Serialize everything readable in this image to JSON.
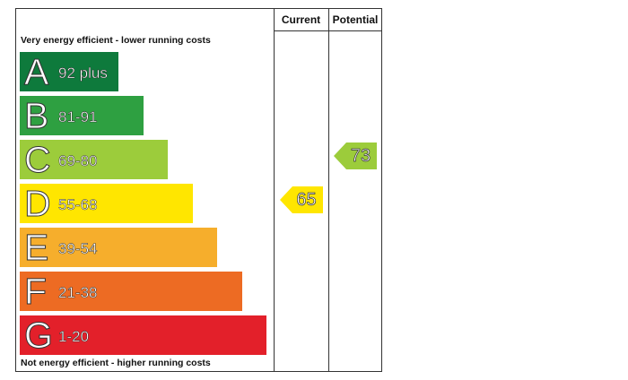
{
  "chart_data": {
    "type": "bar",
    "title": "",
    "header": {
      "current": "Current",
      "potential": "Potential"
    },
    "top_caption": "Very energy efficient - lower running costs",
    "bottom_caption": "Not energy efficient - higher running costs",
    "bands": [
      {
        "letter": "A",
        "range": "92 plus",
        "min": 92,
        "max": 100,
        "color": "#0e7a3c"
      },
      {
        "letter": "B",
        "range": "81-91",
        "min": 81,
        "max": 91,
        "color": "#2ea041"
      },
      {
        "letter": "C",
        "range": "69-80",
        "min": 69,
        "max": 80,
        "color": "#9ccc3b"
      },
      {
        "letter": "D",
        "range": "55-68",
        "min": 55,
        "max": 68,
        "color": "#ffe600"
      },
      {
        "letter": "E",
        "range": "39-54",
        "min": 39,
        "max": 54,
        "color": "#f6ae2c"
      },
      {
        "letter": "F",
        "range": "21-38",
        "min": 21,
        "max": 38,
        "color": "#ed6b23"
      },
      {
        "letter": "G",
        "range": "1-20",
        "min": 1,
        "max": 20,
        "color": "#e3202a"
      }
    ],
    "current": {
      "value": 65,
      "label": "65",
      "band": "D",
      "color": "#ffe600"
    },
    "potential": {
      "value": 73,
      "label": "73",
      "band": "C",
      "color": "#9ccc3b"
    }
  }
}
